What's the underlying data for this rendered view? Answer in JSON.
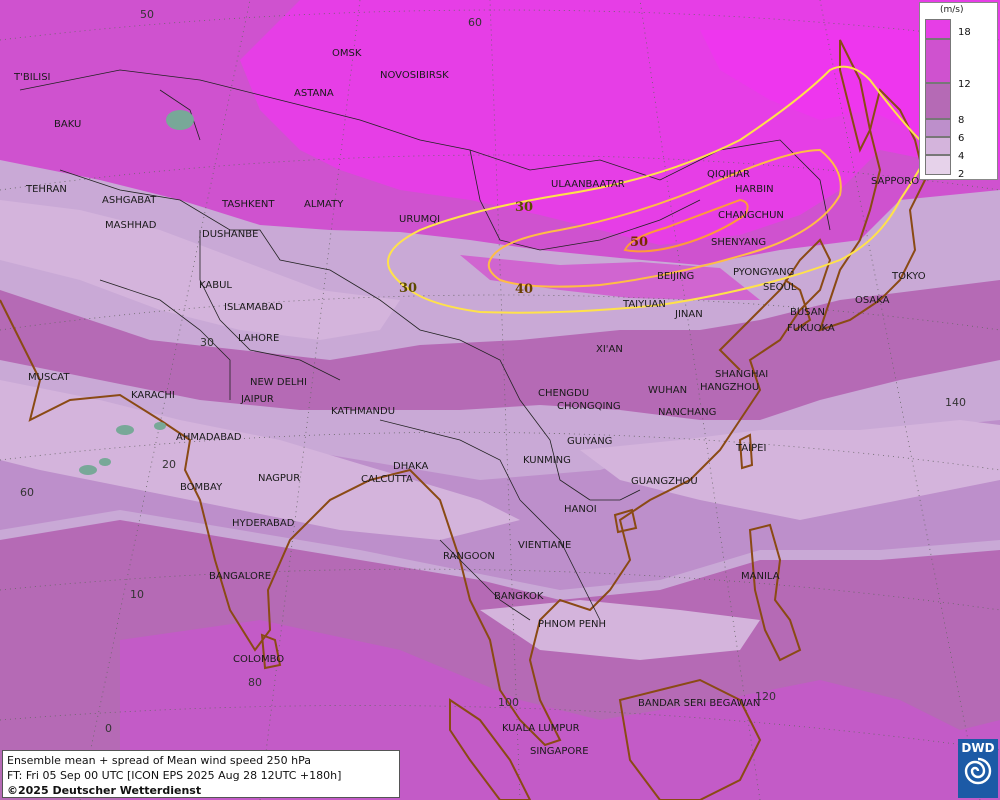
{
  "title": "Ensemble mean + spread of Mean wind speed 250 hPa",
  "forecast_line": "FT: Fri 05 Sep 00 UTC [ICON EPS 2025 Aug 28 12UTC +180h]",
  "copyright": "©2025 Deutscher Wetterdienst",
  "logo_text": "DWD",
  "legend": {
    "unit": "(m/s)",
    "ticks": [
      "18",
      "12",
      "8",
      "6",
      "4",
      "2"
    ],
    "colors": [
      "#e63ee6",
      "#cf52cf",
      "#b56ab5",
      "#bd8fcb",
      "#d4b4dc",
      "#e6d2ea"
    ]
  },
  "contour_labels": [
    "30",
    "30",
    "40",
    "50"
  ],
  "contour_colors": {
    "30": "#ffe24a",
    "40": "#ffbd45",
    "50": "#ff9a3a"
  },
  "grid_labels": [
    "50",
    "60",
    "30",
    "20",
    "10",
    "0",
    "60",
    "80",
    "100",
    "120",
    "140"
  ],
  "cities": [
    "OMSK",
    "NOVOSIBIRSK",
    "T'BILISI",
    "ASTANA",
    "BAKU",
    "TEHRAN",
    "ASHGABAT",
    "MASHHAD",
    "TASHKENT",
    "ALMATY",
    "DUSHANBE",
    "URUMQI",
    "ULAANBAATAR",
    "QIQIHAR",
    "HARBIN",
    "CHANGCHUN",
    "SHENYANG",
    "SAPPORO",
    "KABUL",
    "ISLAMABAD",
    "LAHORE",
    "NEW DELHI",
    "JAIPUR",
    "KATHMANDU",
    "MUSCAT",
    "KARACHI",
    "AHMADABAD",
    "BOMBAY",
    "NAGPUR",
    "HYDERABAD",
    "BANGALORE",
    "COLOMBO",
    "CALCUTTA",
    "DHAKA",
    "BEIJING",
    "PYONGYANG",
    "SEOUL",
    "TOKYO",
    "OSAKA",
    "BUSAN",
    "FUKUOKA",
    "TAIYUAN",
    "JINAN",
    "XI'AN",
    "SHANGHAI",
    "HANGZHOU",
    "WUHAN",
    "CHENGDU",
    "CHONGQING",
    "NANCHANG",
    "GUIYANG",
    "KUNMING",
    "TAIPEI",
    "GUANGZHOU",
    "HANOI",
    "RANGOON",
    "VIENTIANE",
    "BANGKOK",
    "PHNOM PENH",
    "MANILA",
    "KUALA LUMPUR",
    "SINGAPORE",
    "BANDAR SERI BEGAWAN"
  ]
}
